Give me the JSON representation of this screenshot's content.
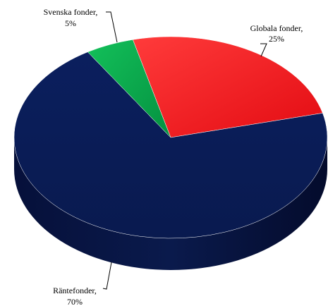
{
  "chart_data": {
    "type": "pie",
    "title": "",
    "three_d": true,
    "slices": [
      {
        "name": "Globala fonder",
        "value": 25,
        "label": "25%",
        "color": "#e8141c"
      },
      {
        "name": "Räntefonder",
        "value": 70,
        "label": "70%",
        "color": "#0c1f5c"
      },
      {
        "name": "Svenska fonder",
        "value": 5,
        "label": "5%",
        "color": "#0aa64a"
      }
    ],
    "labels": [
      {
        "line1": "Globala fonder,",
        "line2": "25%"
      },
      {
        "line1": "Räntefonder,",
        "line2": "70%"
      },
      {
        "line1": "Svenska fonder,",
        "line2": "5%"
      }
    ]
  }
}
